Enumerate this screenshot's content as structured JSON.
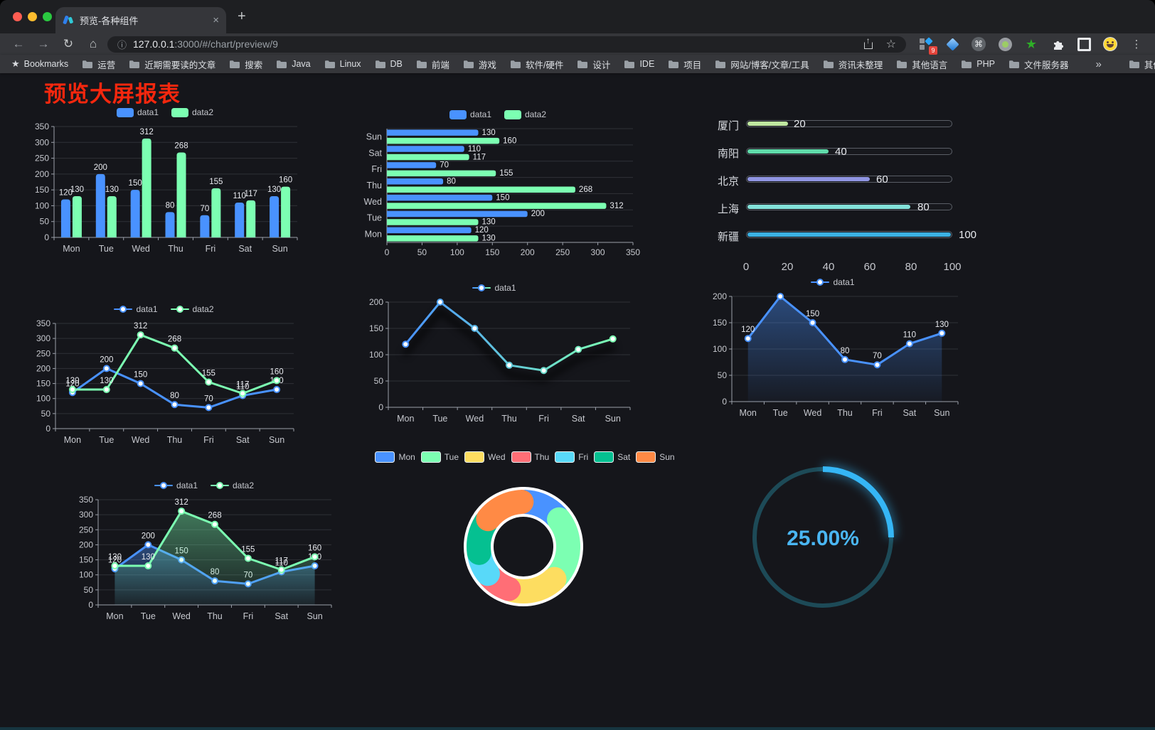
{
  "browser": {
    "tab_title": "预览-各种组件",
    "close_glyph": "×",
    "new_tab_glyph": "+",
    "nav": {
      "back": "←",
      "forward": "→",
      "reload": "↻",
      "home": "⌂"
    },
    "url": {
      "info_glyph": "ⓘ",
      "host": "127.0.0.1",
      "rest": ":3000/#/chart/preview/9"
    },
    "omnibox": {
      "share_glyph": "↑",
      "star_glyph": "☆"
    },
    "extensions": {
      "badge": "9",
      "command_glyph": "⌘",
      "star_glyph": "★",
      "menu_glyph": "⋮"
    },
    "bookmarks": {
      "star_glyph": "★",
      "label": "Bookmarks",
      "folders": [
        "运营",
        "近期需要读的文章",
        "搜索",
        "Java",
        "Linux",
        "DB",
        "前端",
        "游戏",
        "软件/硬件",
        "设计",
        "IDE",
        "项目",
        "网站/博客/文章/工具",
        "资讯未整理",
        "其他语言",
        "PHP",
        "文件服务器"
      ],
      "overflow_glyph": "»",
      "other_label": "其他书签"
    }
  },
  "page": {
    "title": "预览大屏报表",
    "title_color": "#f5270e",
    "background": "#15161b"
  },
  "chart_data": [
    {
      "id": "bar-grouped",
      "type": "bar",
      "legend_position": "top",
      "categories": [
        "Mon",
        "Tue",
        "Wed",
        "Thu",
        "Fri",
        "Sat",
        "Sun"
      ],
      "series": [
        {
          "name": "data1",
          "color": "#4992ff",
          "values": [
            120,
            200,
            150,
            80,
            70,
            110,
            130
          ]
        },
        {
          "name": "data2",
          "color": "#7cffb2",
          "values": [
            130,
            130,
            312,
            268,
            155,
            117,
            160
          ]
        }
      ],
      "ylim": [
        0,
        350
      ],
      "ytick_step": 50
    },
    {
      "id": "bar-horizontal",
      "type": "bar",
      "orientation": "horizontal",
      "legend_position": "top",
      "categories": [
        "Mon",
        "Tue",
        "Wed",
        "Thu",
        "Fri",
        "Sat",
        "Sun"
      ],
      "series": [
        {
          "name": "data1",
          "color": "#4992ff",
          "values": [
            120,
            200,
            150,
            80,
            70,
            110,
            130
          ]
        },
        {
          "name": "data2",
          "color": "#7cffb2",
          "values": [
            130,
            130,
            312,
            268,
            155,
            117,
            160
          ]
        }
      ],
      "xlim": [
        0,
        350
      ],
      "xtick_step": 50
    },
    {
      "id": "progress-bars",
      "type": "bar",
      "orientation": "horizontal",
      "style": "progress",
      "categories": [
        "厦门",
        "南阳",
        "北京",
        "上海",
        "新疆"
      ],
      "values": [
        20,
        40,
        60,
        80,
        100
      ],
      "colors": [
        "#bfe7a0",
        "#60dbaa",
        "#9095e2",
        "#83e2da",
        "#3bb0e2"
      ],
      "xlim": [
        0,
        100
      ],
      "xticks": [
        0,
        20,
        40,
        60,
        80,
        100
      ]
    },
    {
      "id": "line-two-series",
      "type": "line",
      "legend_position": "top",
      "categories": [
        "Mon",
        "Tue",
        "Wed",
        "Thu",
        "Fri",
        "Sat",
        "Sun"
      ],
      "series": [
        {
          "name": "data1",
          "color": "#4992ff",
          "values": [
            120,
            200,
            150,
            80,
            70,
            110,
            130
          ]
        },
        {
          "name": "data2",
          "color": "#7cffb2",
          "values": [
            130,
            130,
            312,
            268,
            155,
            117,
            160
          ]
        }
      ],
      "ylim": [
        0,
        350
      ],
      "ytick_step": 50,
      "show_labels": true
    },
    {
      "id": "line-gradient",
      "type": "line",
      "legend_position": "top",
      "categories": [
        "Mon",
        "Tue",
        "Wed",
        "Thu",
        "Fri",
        "Sat",
        "Sun"
      ],
      "series": [
        {
          "name": "data1",
          "color_gradient": [
            "#4992ff",
            "#7cffb2"
          ],
          "values": [
            120,
            200,
            150,
            80,
            70,
            110,
            130
          ]
        }
      ],
      "ylim": [
        0,
        200
      ],
      "ytick_step": 50,
      "show_labels": false
    },
    {
      "id": "area-single",
      "type": "area",
      "legend_position": "top",
      "categories": [
        "Mon",
        "Tue",
        "Wed",
        "Thu",
        "Fri",
        "Sat",
        "Sun"
      ],
      "series": [
        {
          "name": "data1",
          "color": "#4992ff",
          "values": [
            120,
            200,
            150,
            80,
            70,
            110,
            130
          ]
        }
      ],
      "ylim": [
        0,
        200
      ],
      "ytick_step": 50,
      "show_labels": true
    },
    {
      "id": "area-two-series",
      "type": "area",
      "legend_position": "top",
      "categories": [
        "Mon",
        "Tue",
        "Wed",
        "Thu",
        "Fri",
        "Sat",
        "Sun"
      ],
      "series": [
        {
          "name": "data1",
          "color": "#4992ff",
          "values": [
            120,
            200,
            150,
            80,
            70,
            110,
            130
          ]
        },
        {
          "name": "data2",
          "color": "#7cffb2",
          "values": [
            130,
            130,
            312,
            268,
            155,
            117,
            160
          ]
        }
      ],
      "ylim": [
        0,
        350
      ],
      "ytick_step": 50,
      "show_labels": true
    },
    {
      "id": "donut",
      "type": "pie",
      "legend_position": "top",
      "categories": [
        "Mon",
        "Tue",
        "Wed",
        "Thu",
        "Fri",
        "Sat",
        "Sun"
      ],
      "values": [
        120,
        200,
        150,
        80,
        70,
        110,
        130
      ],
      "colors": [
        "#4992ff",
        "#7cffb2",
        "#fddd60",
        "#ff6e76",
        "#58d9f9",
        "#05c091",
        "#ff8a45"
      ]
    },
    {
      "id": "gauge",
      "type": "gauge",
      "value": 25,
      "label": "25.00%",
      "color": "#35b6f5",
      "track_color": "#1d4a57",
      "label_color": "#4ab6f3"
    }
  ]
}
